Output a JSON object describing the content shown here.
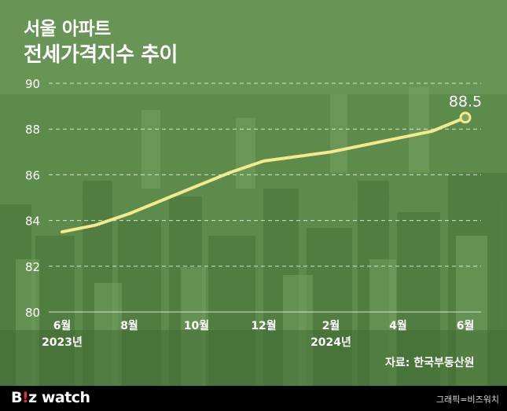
{
  "title": {
    "line1": "서울 아파트",
    "line2": "전세가격지수 추이"
  },
  "source": "자료: 한국부동산원",
  "footer": {
    "brand_b": "B",
    "brand_i": "!",
    "brand_z": "z",
    "brand_watch": " watch",
    "credit": "그래픽=비즈워치"
  },
  "colors": {
    "background": "#5f8d4d",
    "line": "#f3e98d",
    "text": "#ffffff",
    "footer": "#000000",
    "brand_accent": "#e8322c"
  },
  "chart_data": {
    "type": "line",
    "title": "서울 아파트 전세가격지수 추이",
    "xlabel": "",
    "ylabel": "",
    "ylim": [
      80,
      90
    ],
    "y_ticks": [
      "80",
      "82",
      "84",
      "86",
      "88",
      "90"
    ],
    "grid": "horizontal dashed",
    "x_tick_labels": [
      {
        "month": "6월",
        "year": "2023년"
      },
      {
        "month": "8월",
        "year": ""
      },
      {
        "month": "10월",
        "year": ""
      },
      {
        "month": "12월",
        "year": ""
      },
      {
        "month": "2월",
        "year": "2024년"
      },
      {
        "month": "4월",
        "year": ""
      },
      {
        "month": "6월",
        "year": ""
      }
    ],
    "series": [
      {
        "x": [
          "2023-06",
          "2023-07",
          "2023-08",
          "2023-09",
          "2023-10",
          "2023-11",
          "2023-12",
          "2024-01",
          "2024-02",
          "2024-03",
          "2024-04",
          "2024-05",
          "2024-06"
        ],
        "values": [
          83.5,
          83.8,
          84.3,
          84.9,
          85.5,
          86.1,
          86.6,
          86.8,
          87.0,
          87.3,
          87.6,
          87.9,
          88.5
        ]
      }
    ],
    "end_label": "88.5"
  }
}
